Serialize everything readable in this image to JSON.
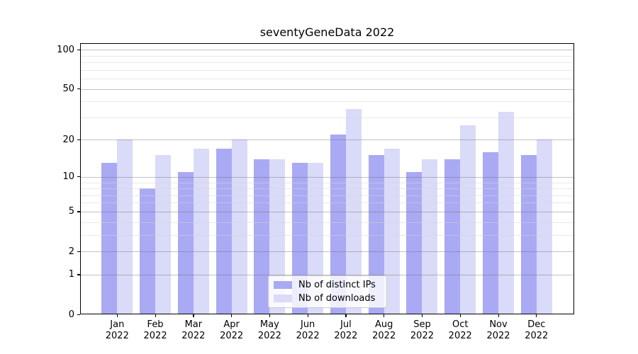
{
  "chart_data": {
    "type": "bar",
    "title": "seventyGeneData 2022",
    "categories": [
      "Jan",
      "Feb",
      "Mar",
      "Apr",
      "May",
      "Jun",
      "Jul",
      "Aug",
      "Sep",
      "Oct",
      "Nov",
      "Dec"
    ],
    "category_year": "2022",
    "series": [
      {
        "name": "Nb of distinct IPs",
        "color": "#a9a9f4",
        "values": [
          13,
          8,
          11,
          17,
          14,
          13,
          22,
          15,
          11,
          14,
          16,
          15
        ]
      },
      {
        "name": "Nb of downloads",
        "color": "#dadaf9",
        "values": [
          20,
          15,
          17,
          20,
          14,
          13,
          35,
          17,
          14,
          26,
          33,
          20
        ]
      }
    ],
    "yscale": "log1p",
    "ylim": [
      0,
      113
    ],
    "yticks": [
      0,
      1,
      2,
      5,
      10,
      20,
      50,
      100
    ],
    "yticks_minor": [
      3,
      4,
      6,
      7,
      8,
      9,
      30,
      40,
      60,
      70,
      80,
      90
    ],
    "grid": "horizontal",
    "legend_position": "lower center"
  }
}
